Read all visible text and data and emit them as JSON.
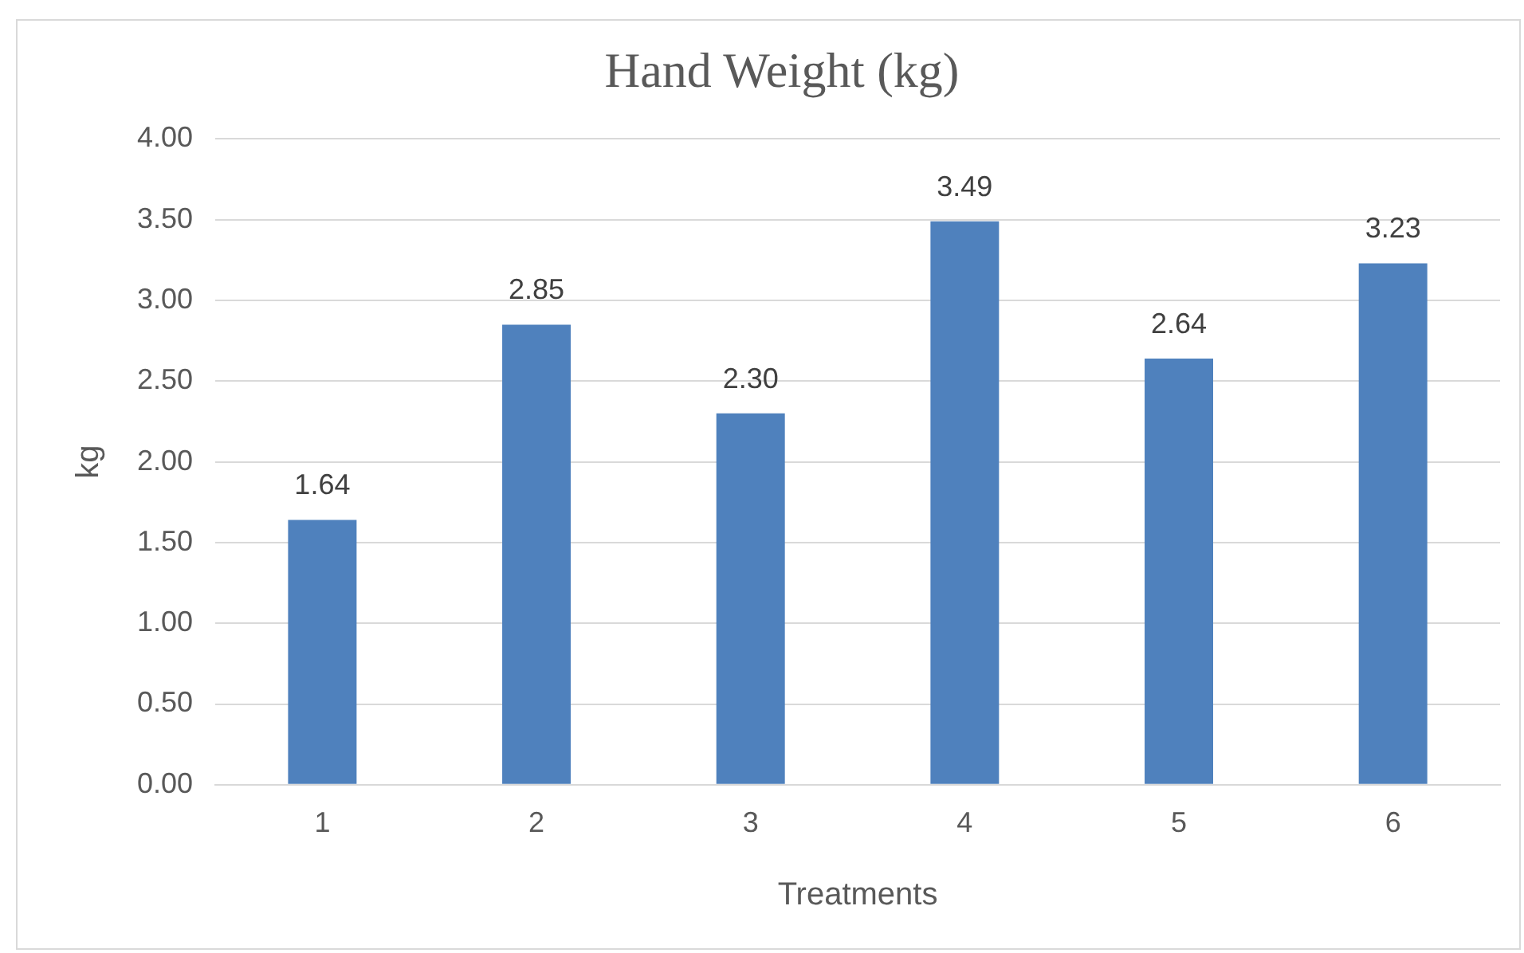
{
  "chart_data": {
    "type": "bar",
    "title": "Hand Weight (kg)",
    "xlabel": "Treatments",
    "ylabel": "kg",
    "categories": [
      "1",
      "2",
      "3",
      "4",
      "5",
      "6"
    ],
    "values": [
      1.64,
      2.85,
      2.3,
      3.49,
      2.64,
      3.23
    ],
    "value_labels": [
      "1.64",
      "2.85",
      "2.30",
      "3.49",
      "2.64",
      "3.23"
    ],
    "color": "#4f81bd",
    "ylim": [
      0,
      4
    ],
    "yticks": [
      {
        "value": 0,
        "label": "0.00"
      },
      {
        "value": 0.5,
        "label": "0.50"
      },
      {
        "value": 1,
        "label": "1.00"
      },
      {
        "value": 1.5,
        "label": "1.50"
      },
      {
        "value": 2,
        "label": "2.00"
      },
      {
        "value": 2.5,
        "label": "2.50"
      },
      {
        "value": 3,
        "label": "3.00"
      },
      {
        "value": 3.5,
        "label": "3.50"
      },
      {
        "value": 4,
        "label": "4.00"
      }
    ],
    "grid": "y",
    "legend": false
  }
}
